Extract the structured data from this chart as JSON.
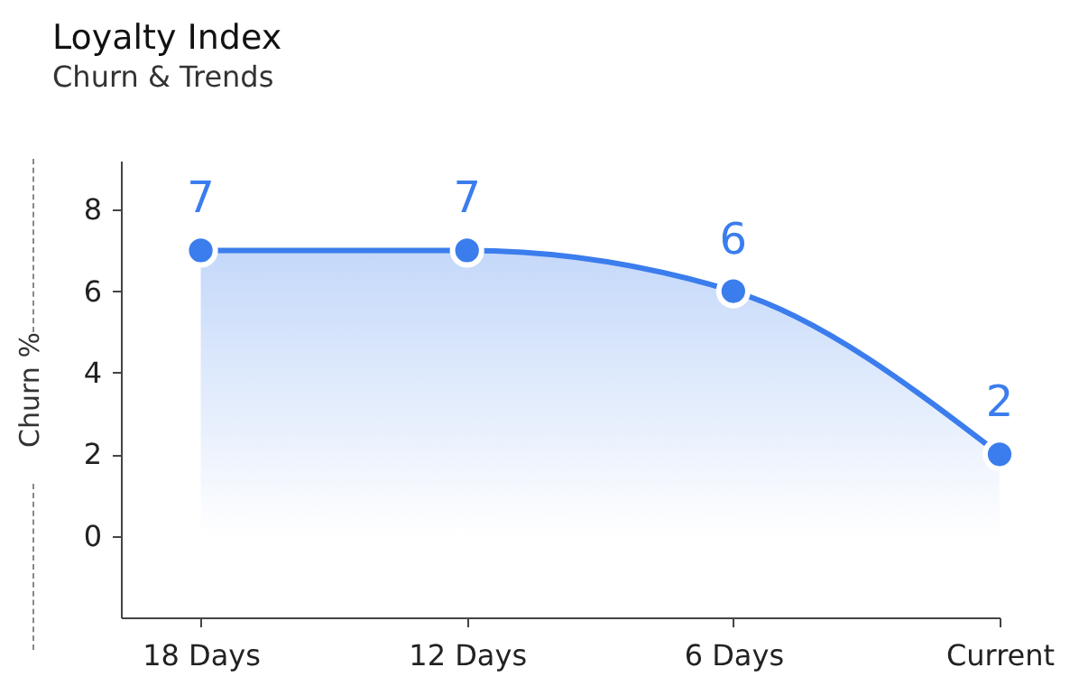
{
  "chart_data": {
    "type": "area",
    "title": "Loyalty Index",
    "subtitle": "Churn & Trends",
    "ylabel": "Churn %",
    "categories": [
      "18 Days",
      "12 Days",
      "6 Days",
      "Current"
    ],
    "series": [
      {
        "color": "#3b7ded",
        "values": [
          7,
          7,
          6,
          2
        ]
      }
    ],
    "ylim": [
      -2,
      9.2
    ],
    "yticks": [
      0,
      2,
      4,
      6,
      8
    ],
    "grid": false,
    "data_labels": true,
    "marker": "circle",
    "line_style": "solid"
  }
}
